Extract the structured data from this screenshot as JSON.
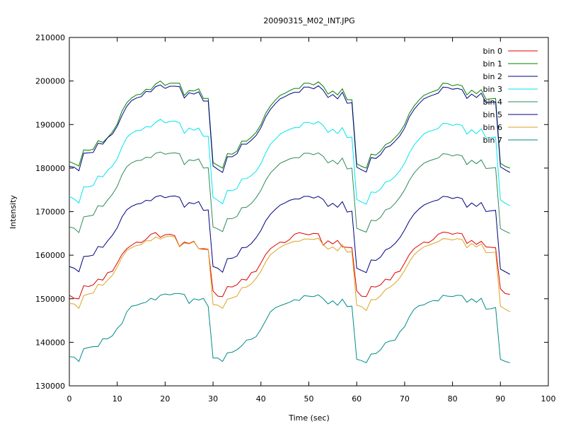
{
  "chart_data": {
    "type": "line",
    "title": "20090315_M02_INT.JPG",
    "xlabel": "Time (sec)",
    "ylabel": "Intensity",
    "xlim": [
      0,
      100
    ],
    "ylim": [
      130000,
      210000
    ],
    "xticks": [
      0,
      10,
      20,
      30,
      40,
      50,
      60,
      70,
      80,
      90,
      100
    ],
    "yticks": [
      130000,
      140000,
      150000,
      160000,
      170000,
      180000,
      190000,
      200000,
      210000
    ],
    "grid": false,
    "legend_position": "top-right",
    "x": [
      0,
      1,
      2,
      3,
      4,
      5,
      6,
      7,
      8,
      9,
      10,
      11,
      12,
      13,
      14,
      15,
      16,
      17,
      18,
      19,
      20,
      21,
      22,
      23,
      24,
      25,
      26,
      27,
      28,
      29,
      30,
      31,
      32,
      33,
      34,
      35,
      36,
      37,
      38,
      39,
      40,
      41,
      42,
      43,
      44,
      45,
      46,
      47,
      48,
      49,
      50,
      51,
      52,
      53,
      54,
      55,
      56,
      57,
      58,
      59,
      60,
      61,
      62,
      63,
      64,
      65,
      66,
      67,
      68,
      69,
      70,
      71,
      72,
      73,
      74,
      75,
      76,
      77,
      78,
      79,
      80,
      81,
      82,
      83,
      84,
      85,
      86,
      87,
      88,
      89,
      90,
      91,
      92
    ],
    "series": [
      {
        "name": "bin 0",
        "color": "#e00000",
        "values": [
          150800,
          150100,
          150000,
          153000,
          152800,
          153200,
          154500,
          154300,
          156000,
          156300,
          158200,
          160200,
          161500,
          162300,
          163000,
          162900,
          163600,
          164800,
          165200,
          164100,
          164700,
          164800,
          164500,
          162000,
          163000,
          162700,
          163200,
          161500,
          161400,
          161300,
          151800,
          150600,
          150500,
          152800,
          152700,
          153200,
          154500,
          154300,
          156000,
          156300,
          158200,
          160200,
          161500,
          162300,
          163000,
          162900,
          163600,
          164800,
          165200,
          164900,
          164700,
          165000,
          164900,
          162300,
          163300,
          162600,
          163400,
          161900,
          161800,
          161700,
          151800,
          150600,
          150500,
          152800,
          152700,
          153200,
          154500,
          154300,
          156000,
          156300,
          158200,
          160200,
          161500,
          162300,
          163000,
          162900,
          163600,
          164800,
          165300,
          165200,
          164800,
          165100,
          164900,
          162700,
          163400,
          162500,
          163200,
          161900,
          161800,
          161700,
          152300,
          151200,
          151000
        ]
      },
      {
        "name": "bin 1",
        "color": "#008000",
        "values": [
          181500,
          181000,
          180500,
          184200,
          184100,
          184300,
          186300,
          185900,
          187000,
          188300,
          190100,
          193100,
          195000,
          196100,
          196800,
          197000,
          198100,
          198000,
          199300,
          200000,
          199000,
          199500,
          199500,
          199500,
          196700,
          197800,
          197700,
          198200,
          196000,
          196000,
          181300,
          180600,
          180000,
          183300,
          183200,
          183900,
          186200,
          186200,
          187100,
          188200,
          190000,
          192600,
          194300,
          195600,
          196700,
          197200,
          197800,
          198300,
          198300,
          199500,
          199500,
          199100,
          199800,
          198800,
          197000,
          197700,
          196800,
          198200,
          195700,
          195700,
          181000,
          180400,
          180000,
          183200,
          183000,
          183900,
          185400,
          185900,
          187000,
          188200,
          190000,
          192600,
          194300,
          195600,
          196700,
          197200,
          197600,
          198000,
          199500,
          199400,
          198900,
          199200,
          198900,
          196800,
          197900,
          197100,
          198000,
          195800,
          195900,
          196000,
          181100,
          180400,
          180000
        ]
      },
      {
        "name": "bin 2",
        "color": "#00008b",
        "values": [
          180400,
          180200,
          179400,
          183400,
          183500,
          183600,
          185700,
          185500,
          187000,
          187800,
          189600,
          192100,
          194200,
          195500,
          196100,
          196400,
          197600,
          197500,
          198700,
          199100,
          198300,
          198800,
          198800,
          198700,
          196100,
          197300,
          197000,
          197500,
          195400,
          195400,
          180500,
          179700,
          179000,
          182600,
          182600,
          183300,
          185500,
          185500,
          186400,
          187500,
          189300,
          191800,
          193500,
          194800,
          195900,
          196400,
          197000,
          197400,
          197400,
          198600,
          198600,
          198200,
          198900,
          197900,
          196200,
          196900,
          195900,
          197400,
          194900,
          195000,
          180200,
          179600,
          179100,
          182400,
          182200,
          183100,
          184700,
          185100,
          186200,
          187400,
          189200,
          191800,
          193500,
          194800,
          195900,
          196400,
          196800,
          197200,
          198600,
          198500,
          198100,
          198300,
          198000,
          196000,
          197000,
          196200,
          197200,
          195000,
          195100,
          195200,
          180300,
          179600,
          179000
        ]
      },
      {
        "name": "bin 3",
        "color": "#00e5ee",
        "values": [
          173500,
          172900,
          172000,
          175700,
          175700,
          176000,
          178200,
          178000,
          179500,
          180500,
          182100,
          184900,
          187000,
          188000,
          188600,
          188700,
          189500,
          189400,
          190500,
          191200,
          190400,
          190700,
          190800,
          190400,
          188000,
          189200,
          188700,
          189200,
          187300,
          187300,
          173300,
          172600,
          171800,
          174900,
          174800,
          175300,
          177500,
          177600,
          178300,
          179300,
          181000,
          183500,
          185500,
          186600,
          187800,
          188400,
          188900,
          189300,
          189300,
          190500,
          190500,
          190100,
          190700,
          189800,
          188200,
          188900,
          187900,
          189300,
          187000,
          187100,
          172800,
          172200,
          171700,
          174500,
          174400,
          175200,
          176800,
          177100,
          178100,
          179400,
          181100,
          183500,
          185300,
          186600,
          187800,
          188400,
          188700,
          189100,
          190300,
          190200,
          189800,
          190100,
          189800,
          187800,
          188800,
          187900,
          189000,
          186900,
          187000,
          187100,
          172700,
          171900,
          171400
        ]
      },
      {
        "name": "bin 4",
        "color": "#2e8b57",
        "values": [
          166500,
          166200,
          165200,
          168800,
          169000,
          169200,
          171400,
          171200,
          172700,
          174000,
          175800,
          178500,
          180300,
          181200,
          181700,
          181800,
          182500,
          182400,
          183400,
          183700,
          183200,
          183400,
          183500,
          183300,
          180800,
          181900,
          181700,
          182100,
          180000,
          180100,
          166500,
          166000,
          165400,
          168400,
          168400,
          168900,
          170900,
          171000,
          171900,
          173200,
          174900,
          177200,
          178900,
          180000,
          181100,
          181600,
          182100,
          182400,
          182400,
          183400,
          183400,
          183100,
          183500,
          182700,
          181200,
          181800,
          180900,
          182300,
          179800,
          180000,
          166200,
          165700,
          165300,
          168000,
          167900,
          168700,
          170400,
          170800,
          171900,
          173300,
          175000,
          177200,
          178900,
          180100,
          181100,
          181600,
          182000,
          182300,
          183300,
          183200,
          182800,
          183100,
          182800,
          180800,
          181800,
          181000,
          181900,
          179900,
          180000,
          180100,
          166100,
          165500,
          165000
        ]
      },
      {
        "name": "bin 5",
        "color": "#000080",
        "values": [
          157400,
          157000,
          156200,
          159700,
          159800,
          160000,
          162000,
          161800,
          163300,
          164600,
          166300,
          168800,
          170400,
          171200,
          171700,
          171900,
          172600,
          172500,
          173400,
          173700,
          173200,
          173500,
          173600,
          173300,
          171000,
          172100,
          171800,
          172300,
          170300,
          170400,
          157400,
          157000,
          156100,
          159200,
          159300,
          159800,
          161700,
          161800,
          162700,
          164000,
          165700,
          167900,
          169400,
          170500,
          171500,
          172000,
          172600,
          172900,
          172900,
          173500,
          173500,
          173100,
          173500,
          172800,
          171200,
          171900,
          171000,
          172300,
          169900,
          170100,
          157000,
          156500,
          156000,
          158900,
          158800,
          159600,
          161200,
          161700,
          162700,
          164000,
          165800,
          167900,
          169500,
          170600,
          171500,
          172000,
          172400,
          172700,
          173500,
          173400,
          173000,
          173300,
          173000,
          171000,
          172000,
          171200,
          172100,
          170000,
          170200,
          170300,
          156800,
          156200,
          155600
        ]
      },
      {
        "name": "bin 6",
        "color": "#daa520",
        "values": [
          148900,
          148800,
          147800,
          150700,
          151100,
          151300,
          153300,
          153100,
          154300,
          155400,
          157300,
          159500,
          161100,
          161700,
          162200,
          162400,
          163300,
          163300,
          164200,
          163700,
          164200,
          164400,
          164200,
          161900,
          162800,
          162600,
          163100,
          161500,
          161600,
          161400,
          148700,
          148500,
          147800,
          149900,
          150200,
          150600,
          152500,
          152700,
          153400,
          154700,
          156300,
          158500,
          160100,
          161000,
          161800,
          162400,
          162800,
          163200,
          163200,
          163700,
          163700,
          163600,
          163900,
          162400,
          161400,
          161900,
          161000,
          162400,
          160700,
          160800,
          148500,
          148200,
          147300,
          149800,
          149800,
          150700,
          152100,
          152700,
          153600,
          154800,
          156500,
          158500,
          160100,
          161100,
          161900,
          162300,
          162700,
          163100,
          163800,
          163700,
          163500,
          163800,
          163600,
          161700,
          162700,
          161900,
          162600,
          160600,
          160600,
          160700,
          148300,
          147600,
          147000
        ]
      },
      {
        "name": "bin 7",
        "color": "#008b8b",
        "values": [
          136700,
          136600,
          135600,
          138500,
          138800,
          139000,
          139000,
          140800,
          140800,
          141500,
          143200,
          144300,
          147000,
          148300,
          148500,
          148900,
          149200,
          150100,
          149700,
          150800,
          151100,
          150900,
          151200,
          151200,
          151000,
          148900,
          150000,
          149700,
          150100,
          148200,
          136400,
          136400,
          135600,
          137600,
          137700,
          138300,
          139200,
          140500,
          140700,
          141300,
          143000,
          145000,
          147000,
          147900,
          148400,
          148800,
          149200,
          149800,
          149600,
          150700,
          150600,
          150500,
          150900,
          150000,
          148800,
          149500,
          148500,
          149900,
          148200,
          148300,
          136100,
          135800,
          135300,
          137300,
          137400,
          138300,
          139900,
          140300,
          140500,
          142400,
          143600,
          145900,
          147600,
          148400,
          148600,
          149200,
          149600,
          149500,
          150800,
          150600,
          150500,
          150800,
          150700,
          149200,
          150000,
          149200,
          150100,
          147600,
          147700,
          148000,
          136100,
          135600,
          135300
        ]
      }
    ]
  }
}
